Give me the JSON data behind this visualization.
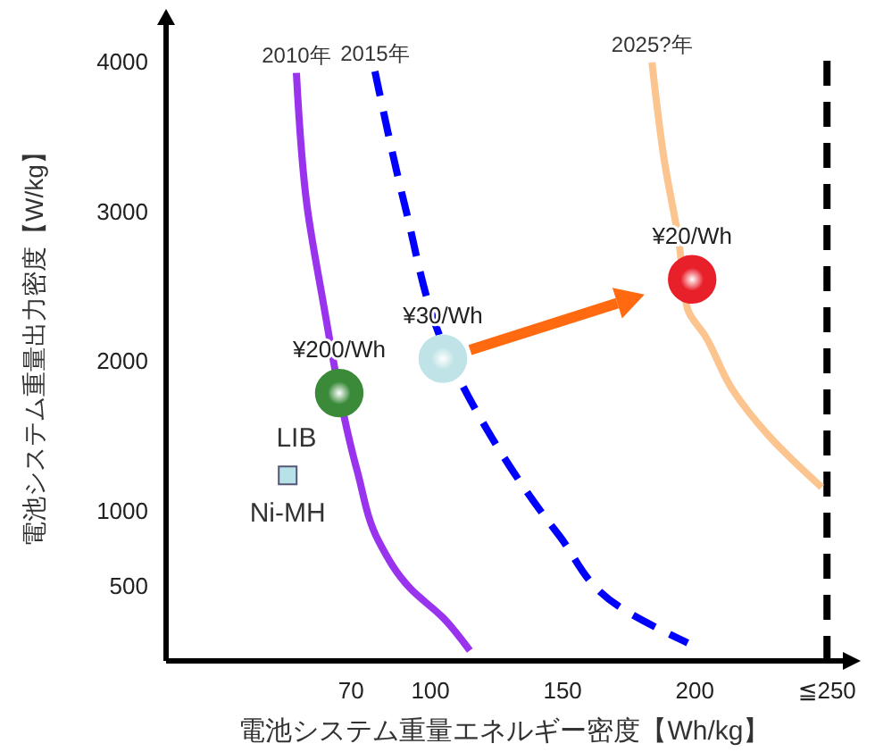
{
  "chart_data": {
    "type": "line",
    "xlabel": "電池システム重量エネルギー密度【Wh/kg】",
    "ylabel": "電池システム重量出力密度【W/kg】",
    "xlim": [
      0,
      256
    ],
    "xticks": [
      70,
      100,
      150,
      200,
      {
        "value": 250,
        "label": "≦250"
      }
    ],
    "ylim": [
      0,
      4250
    ],
    "yticks": [
      500,
      1000,
      2000,
      3000,
      4000
    ],
    "grid": false,
    "legend": false,
    "series": [
      {
        "name": "2010年",
        "color": "#9933ee",
        "line_style": "solid",
        "x": [
          49.3,
          53.4,
          58.8,
          65.5,
          72.3,
          80.4,
          92.6,
          104.7,
          114.9
        ],
        "values": [
          3930,
          3030,
          2460,
          null,
          1270,
          800,
          480,
          290,
          70
        ]
      },
      {
        "name": "2015年",
        "color": "#0000ff",
        "line_style": "dashed",
        "x": [
          79,
          90.5,
          104,
          121.6,
          148.6,
          171.6,
          197.3
        ],
        "values": [
          3940,
          3030,
          2150,
          1540,
          840,
          360,
          120
        ]
      },
      {
        "name": "2025?年",
        "color": "#fcc58f",
        "line_style": "solid",
        "x": [
          183.8,
          188.5,
          194,
          197.3,
          204,
          214,
          227.7,
          248
        ],
        "values": [
          4000,
          3340,
          2800,
          2350,
          2170,
          1820,
          1510,
          1160
        ]
      },
      {
        "name": "LIB",
        "type": "scatter",
        "marker": "circle",
        "color": "#3a8a3a",
        "x": [
          65.5
        ],
        "values": [
          1790
        ]
      },
      {
        "type": "scatter",
        "marker": "circle",
        "color": "#bfe3e6",
        "x": [
          104.7
        ],
        "values": [
          2020
        ]
      },
      {
        "type": "scatter",
        "marker": "circle",
        "color": "#e8202a",
        "x": [
          199
        ],
        "values": [
          2550
        ]
      },
      {
        "name": "Ni-MH",
        "type": "scatter",
        "marker": "square",
        "color": "#b7e3e8",
        "x": [
          46
        ],
        "values": [
          1240
        ]
      }
    ],
    "ref_lines": [
      {
        "axis": "x",
        "value": 250,
        "color": "#000000",
        "line_style": "dashed"
      }
    ],
    "annotations": [
      {
        "text": "¥200/Wh",
        "x": 65.5,
        "y": 1790
      },
      {
        "text": "¥30/Wh",
        "x": 104.7,
        "y": 2020
      },
      {
        "text": "¥20/Wh",
        "x": 199,
        "y": 2550
      }
    ]
  }
}
